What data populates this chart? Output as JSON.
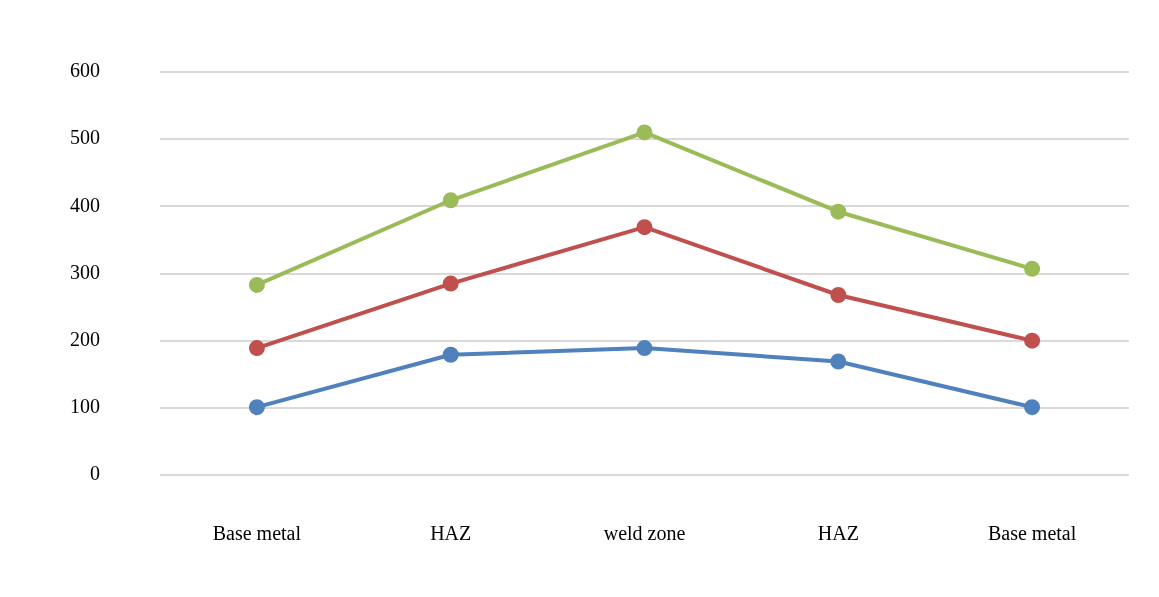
{
  "chart_data": {
    "type": "line",
    "categories": [
      "Base metal",
      "HAZ",
      "weld zone",
      "HAZ",
      "Base metal"
    ],
    "series": [
      {
        "color": "#4f81bd",
        "values": [
          101,
          179,
          189,
          169,
          101
        ]
      },
      {
        "color": "#c0504d",
        "values": [
          189,
          285,
          369,
          268,
          200
        ]
      },
      {
        "color": "#9bbb59",
        "values": [
          283,
          409,
          510,
          392,
          307
        ]
      }
    ],
    "ylim": [
      0,
      600
    ],
    "yticks": [
      0,
      100,
      200,
      300,
      400,
      500,
      600
    ],
    "grid": "y",
    "legend": false,
    "marker": "circle",
    "line_style": "solid"
  }
}
